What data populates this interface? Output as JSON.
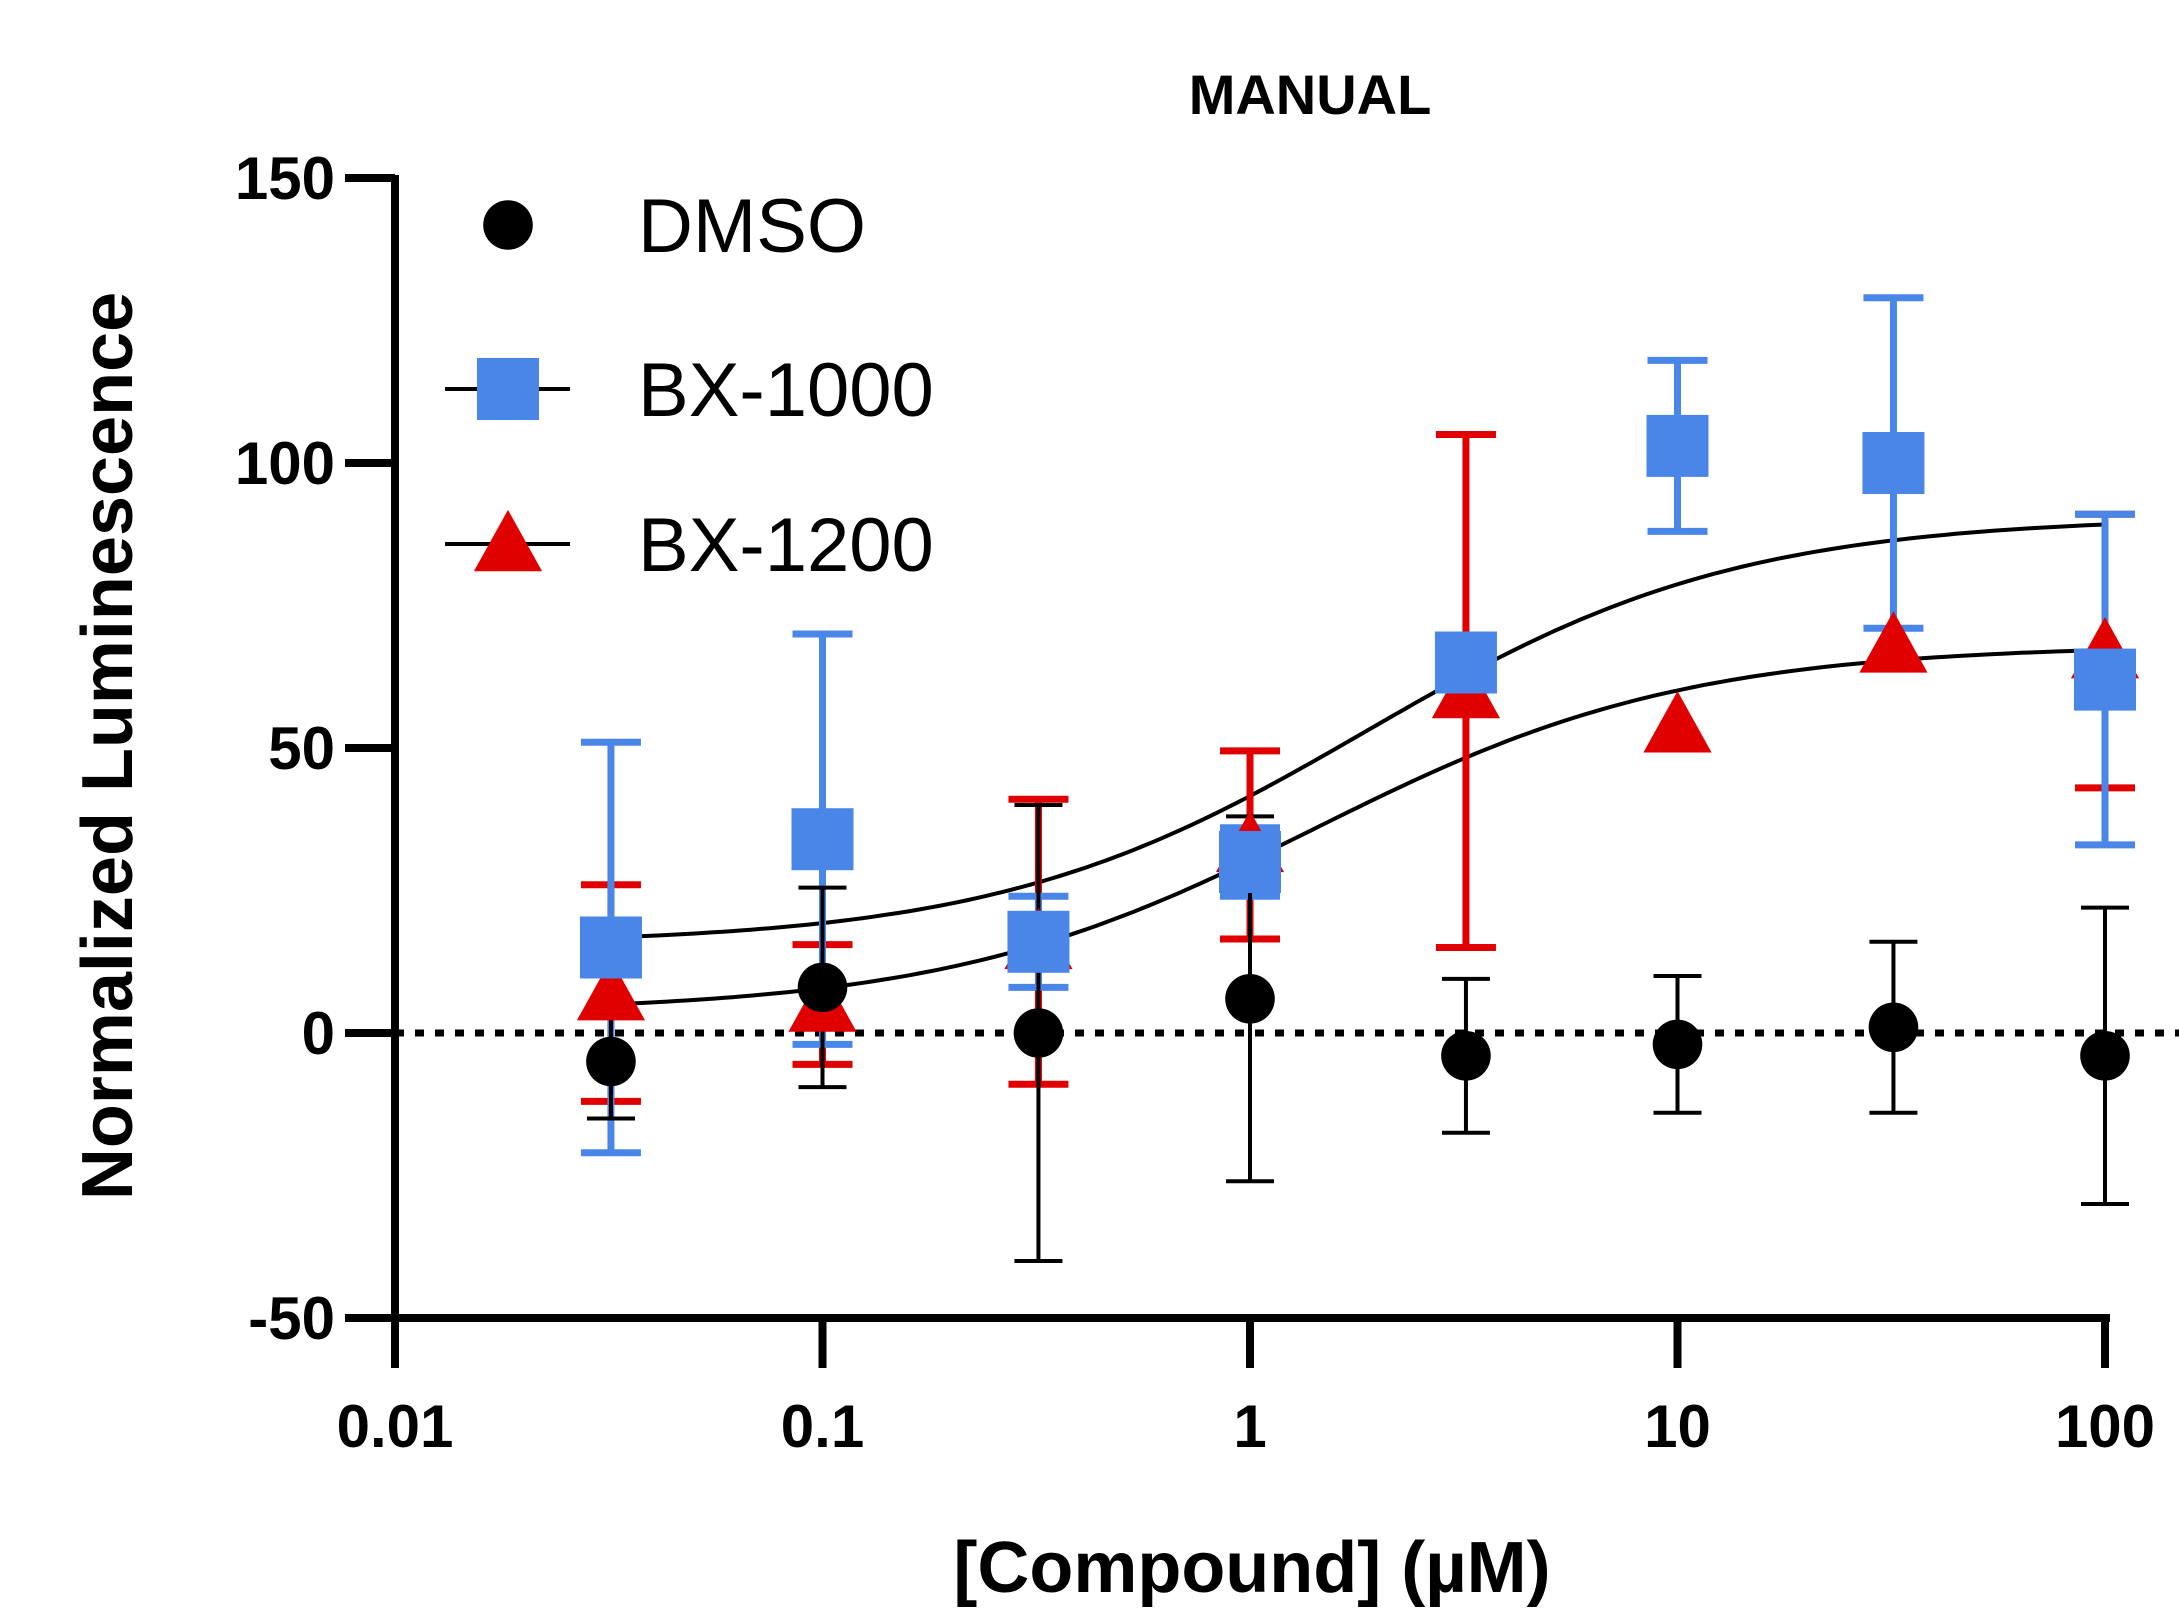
{
  "chart_data": {
    "type": "scatter",
    "title": "MANUAL",
    "xlabel": "[Compound] (µM)",
    "ylabel": "Normalized Luminescence",
    "x_scale": "log",
    "xlim": [
      0.01,
      100
    ],
    "ylim": [
      -50,
      150
    ],
    "x_ticks": [
      0.01,
      0.1,
      1,
      10,
      100
    ],
    "x_tick_labels": [
      "0.01",
      "0.1",
      "1",
      "10",
      "100"
    ],
    "y_ticks": [
      -50,
      0,
      50,
      100,
      150
    ],
    "y_tick_labels": [
      "-50",
      "0",
      "50",
      "100",
      "150"
    ],
    "reference_line": {
      "y": 0,
      "style": "dotted",
      "color": "#000000"
    },
    "legend_position": "top-left",
    "series": [
      {
        "name": "DMSO",
        "marker": "circle",
        "color": "#000000",
        "x": [
          0.032,
          0.1,
          0.32,
          1,
          3.2,
          10,
          32,
          100
        ],
        "y": [
          -5,
          8,
          0,
          6,
          -4,
          -2,
          1,
          -4
        ],
        "err": [
          10,
          17.5,
          40,
          32,
          13.5,
          12,
          15,
          26
        ]
      },
      {
        "name": "BX-1000",
        "marker": "square",
        "color": "#4a86e8",
        "x": [
          0.032,
          0.1,
          0.32,
          1,
          3.2,
          10,
          32,
          100
        ],
        "y": [
          15,
          34,
          16,
          30,
          65,
          103,
          100,
          62
        ],
        "err": [
          36,
          36,
          8,
          6,
          4,
          15,
          29,
          29
        ],
        "fit": {
          "bottom": 15.5,
          "top": 90.6,
          "log_ec50": 0.274,
          "hill": 1
        }
      },
      {
        "name": "BX-1200",
        "marker": "triangle",
        "color": "#e00000",
        "x": [
          0.032,
          0.1,
          0.32,
          1,
          3.2,
          10,
          32,
          100
        ],
        "y": [
          7,
          5,
          16,
          33,
          60,
          54,
          68,
          67
        ],
        "err": [
          19,
          10.5,
          25,
          16.5,
          45,
          0,
          0,
          24
        ],
        "fit": {
          "bottom": 3.6,
          "top": 68.1,
          "log_ec50": 0.151,
          "hill": 1
        }
      }
    ]
  }
}
